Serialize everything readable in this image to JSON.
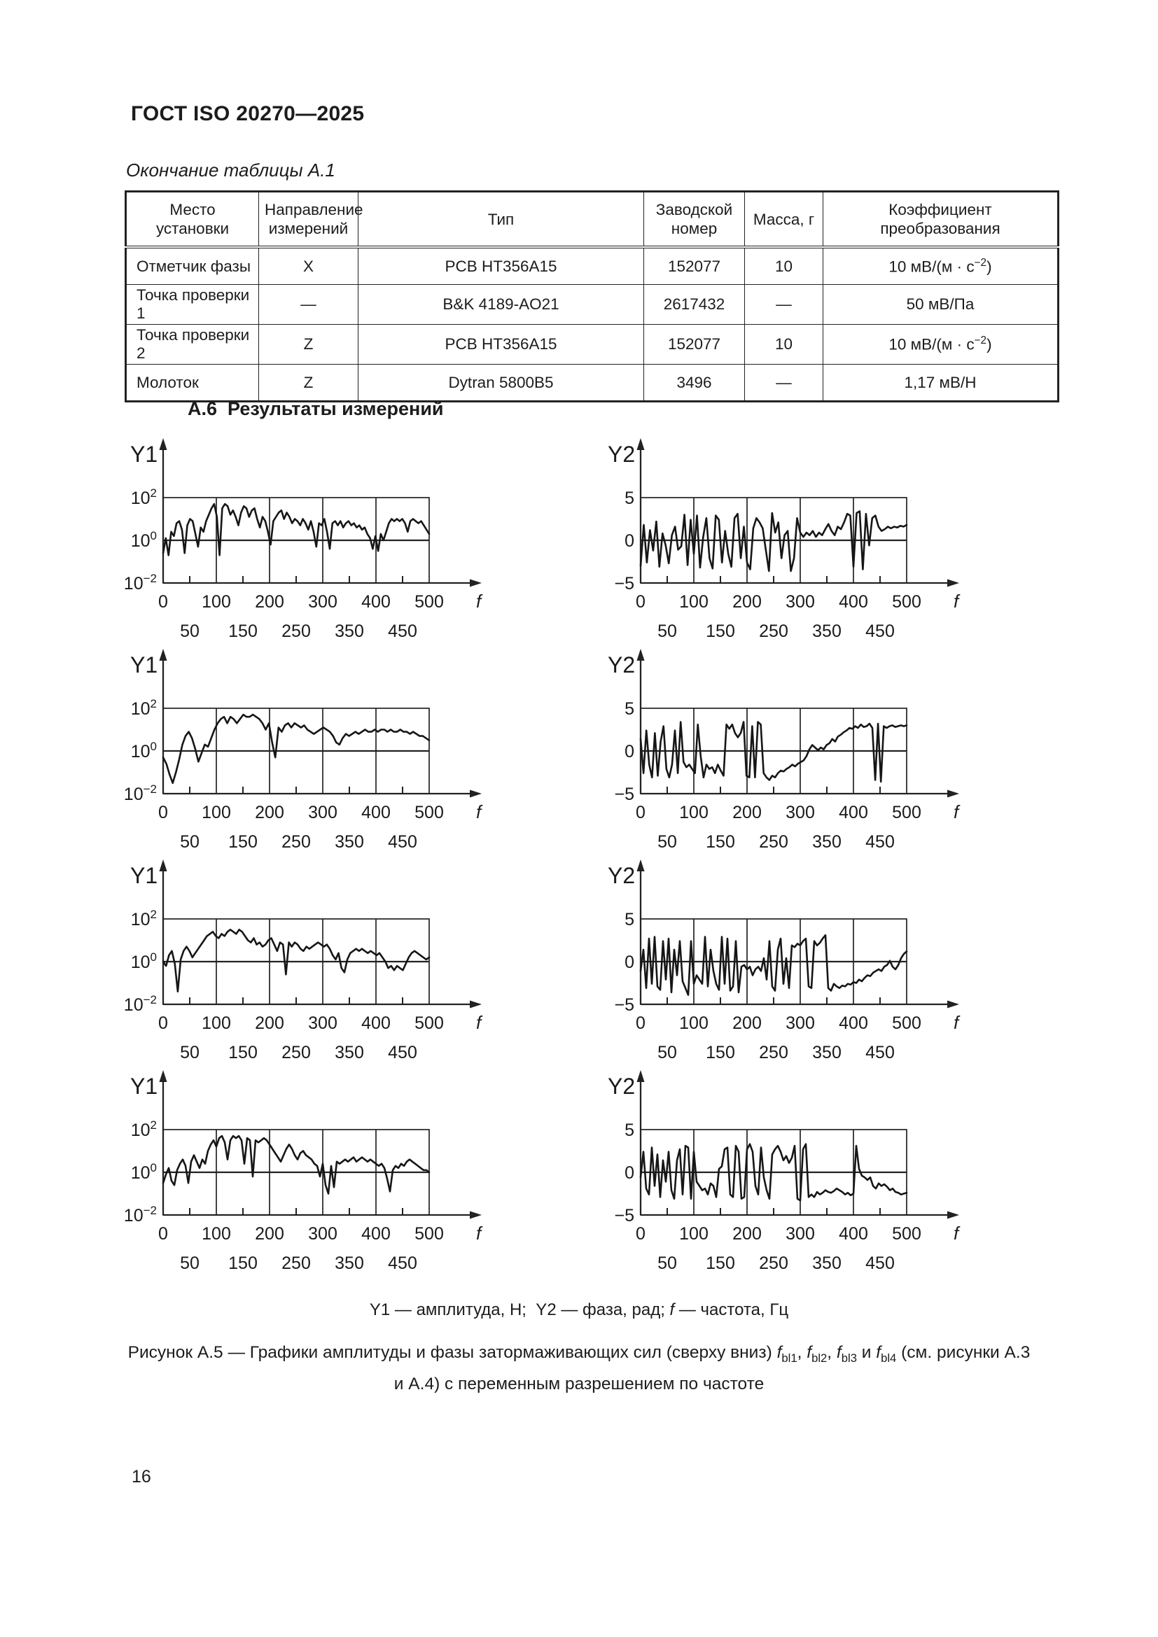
{
  "header": {
    "title": "ГОСТ ISO 20270—2025"
  },
  "page": {
    "number": "16"
  },
  "table": {
    "caption": "Окончание таблицы А.1",
    "headers": [
      "Место установки",
      "Направление измерений",
      "Тип",
      "Заводской номер",
      "Масса, г",
      "Коэффициент преобразования"
    ],
    "rows": [
      [
        "Отметчик фазы",
        "X",
        "PCB HT356A15",
        "152077",
        "10",
        "10 мВ/(м · с[sup]−2[/sup])"
      ],
      [
        "Точка проверки 1",
        "—",
        "B&K 4189-AO21",
        "2617432",
        "—",
        "50 мВ/Па"
      ],
      [
        "Точка проверки 2",
        "Z",
        "PCB HT356A15",
        "152077",
        "10",
        "10 мВ/(м · с[sup]−2[/sup])"
      ],
      [
        "Молоток",
        "Z",
        "Dytran 5800B5",
        "3496",
        "—",
        "1,17 мВ/Н"
      ]
    ]
  },
  "section": {
    "heading": "А.6  Результаты измерений"
  },
  "figure": {
    "legend": "Y1 — амплитуда, Н;  Y2 — фаза, рад; [i]f[/i] — частота, Гц",
    "caption_lines": [
      "Рисунок А.5 — Графики амплитуды и фазы затормаживающих сил (сверху вниз) [i]f[/i][sub]bl1[/sub], [i]f[/i][sub]bl2[/sub], [i]f[/i][sub]bl3[/sub] и [i]f[/i][sub]bl4[/sub] (см. рисунки А.3",
      "и А.4) с переменным разрешением по частоте"
    ]
  },
  "chart_data": [
    {
      "type": "line",
      "name": "fbl1-amplitude",
      "ylabel": "Y1",
      "xlabel": "f",
      "y_scale": "log10",
      "ymin": -2,
      "ymax": 2,
      "yticks": [
        [
          "10",
          "2"
        ],
        [
          "10",
          "0"
        ],
        [
          "10",
          "−2"
        ]
      ],
      "xmin": 0,
      "xmax": 500,
      "xticks_major": [
        0,
        100,
        200,
        300,
        400,
        500
      ],
      "xticks_minor": [
        50,
        150,
        250,
        350,
        450
      ],
      "y": [
        -0.6,
        0.1,
        -0.7,
        0.4,
        0.2,
        0.8,
        0.9,
        0.5,
        -0.6,
        0.7,
        1.0,
        0.9,
        0.3,
        -0.3,
        0.6,
        0.4,
        0.9,
        1.2,
        1.5,
        1.7,
        1.1,
        -0.7,
        1.5,
        1.7,
        1.6,
        1.2,
        1.4,
        1.1,
        0.7,
        1.3,
        1.6,
        1.5,
        1.1,
        1.4,
        1.5,
        1.0,
        0.6,
        1.1,
        0.9,
        0.4,
        -0.2,
        0.9,
        1.1,
        1.3,
        1.4,
        1.0,
        1.3,
        1.1,
        0.8,
        1.0,
        0.9,
        0.7,
        1.0,
        0.8,
        0.5,
        0.9,
        0.4,
        -0.3,
        0.8,
        0.7,
        1.0,
        0.4,
        -0.4,
        0.8,
        0.9,
        0.7,
        0.9,
        0.6,
        0.8,
        0.9,
        0.7,
        0.8,
        0.6,
        0.7,
        0.5,
        0.6,
        0.3,
        0.1,
        -0.4,
        0.2,
        -0.5,
        0.3,
        0.0,
        0.4,
        0.8,
        1.0,
        0.9,
        1.0,
        0.9,
        1.0,
        0.8,
        0.4,
        0.9,
        1.0,
        0.9,
        0.8,
        0.9,
        0.7,
        0.5,
        0.3
      ]
    },
    {
      "type": "line",
      "name": "fbl1-phase",
      "ylabel": "Y2",
      "xlabel": "f",
      "y_scale": "linear",
      "ymin": -5,
      "ymax": 5,
      "yticks": [
        [
          "5"
        ],
        [
          "0"
        ],
        [
          "−5"
        ]
      ],
      "xmin": 0,
      "xmax": 500,
      "xticks_major": [
        0,
        100,
        200,
        300,
        400,
        500
      ],
      "xticks_minor": [
        50,
        150,
        250,
        350,
        450
      ],
      "y": [
        -3,
        1.8,
        -2.6,
        1.2,
        -1.2,
        2.2,
        -3.1,
        0.8,
        -0.6,
        -2.7,
        0.6,
        1.6,
        -1.1,
        -0.7,
        3,
        -2.9,
        2.4,
        -1.6,
        2.9,
        -3.2,
        0.4,
        2.6,
        -2.1,
        -3.3,
        2.9,
        2.4,
        -2.6,
        1.1,
        -1.6,
        -3.1,
        2.6,
        3.1,
        -2.1,
        1.6,
        -2.6,
        -3.4,
        1.4,
        2.6,
        2.1,
        1.4,
        -1.1,
        -3.6,
        3.2,
        0.9,
        2.1,
        -2.1,
        0.6,
        1.1,
        -3.6,
        -2.1,
        2.6,
        0.9,
        0.4,
        0.9,
        0.6,
        1.1,
        0.4,
        0.9,
        0.6,
        1.3,
        1.9,
        1.1,
        0.6,
        1.6,
        1.3,
        2.1,
        3.1,
        2.9,
        -3.1,
        3.2,
        3.4,
        -3.4,
        3.1,
        -0.6,
        2.6,
        2.9,
        1.6,
        1.1,
        1.3,
        1.6,
        1.4,
        1.6,
        1.5,
        1.7,
        1.6,
        1.8
      ]
    },
    {
      "type": "line",
      "name": "fbl2-amplitude",
      "ylabel": "Y1",
      "xlabel": "f",
      "y_scale": "log10",
      "ymin": -2,
      "ymax": 2,
      "yticks": [
        [
          "10",
          "2"
        ],
        [
          "10",
          "0"
        ],
        [
          "10",
          "−2"
        ]
      ],
      "xmin": 0,
      "xmax": 500,
      "xticks_major": [
        0,
        100,
        200,
        300,
        400,
        500
      ],
      "xticks_minor": [
        50,
        150,
        250,
        350,
        450
      ],
      "y": [
        -0.3,
        -0.6,
        -1.1,
        -1.5,
        -1.0,
        -0.4,
        0.3,
        0.7,
        0.9,
        0.6,
        0.1,
        -0.5,
        -0.1,
        0.3,
        0.2,
        0.6,
        1.0,
        1.3,
        1.5,
        1.6,
        1.3,
        1.6,
        1.5,
        1.3,
        1.5,
        1.7,
        1.6,
        1.6,
        1.7,
        1.6,
        1.5,
        1.3,
        1.0,
        1.3,
        0.4,
        -0.3,
        1.1,
        0.9,
        1.2,
        1.3,
        1.1,
        1.3,
        1.2,
        1.1,
        1.2,
        1.0,
        0.9,
        0.8,
        0.9,
        1.0,
        1.1,
        1.0,
        0.9,
        0.7,
        0.4,
        0.3,
        0.6,
        0.8,
        0.7,
        0.8,
        0.9,
        0.8,
        0.9,
        1.0,
        0.9,
        0.9,
        1.0,
        0.9,
        1.0,
        1.0,
        0.9,
        1.0,
        0.9,
        0.9,
        1.0,
        0.9,
        0.9,
        0.8,
        0.9,
        0.8,
        0.7,
        0.7,
        0.6,
        0.5
      ]
    },
    {
      "type": "line",
      "name": "fbl2-phase",
      "ylabel": "Y2",
      "xlabel": "f",
      "y_scale": "linear",
      "ymin": -5,
      "ymax": 5,
      "yticks": [
        [
          "5"
        ],
        [
          "0"
        ],
        [
          "−5"
        ]
      ],
      "xmin": 0,
      "xmax": 500,
      "xticks_major": [
        0,
        100,
        200,
        300,
        400,
        500
      ],
      "xticks_minor": [
        50,
        150,
        250,
        350,
        450
      ],
      "y": [
        1.4,
        -2.6,
        2.4,
        -1.6,
        -3.1,
        2.1,
        -2.9,
        1.1,
        2.9,
        -2.1,
        -3.1,
        -1.6,
        2.4,
        -2.6,
        3.4,
        -1.3,
        -1.9,
        -1.6,
        -2.1,
        -2.6,
        3.1,
        -0.6,
        -3.1,
        -1.6,
        -2.1,
        -1.9,
        -2.6,
        -1.6,
        -2.3,
        -2.9,
        3.1,
        2.6,
        3.1,
        2.1,
        1.6,
        2.1,
        3.4,
        -2.9,
        -3.1,
        2.9,
        -3.1,
        3.4,
        3.1,
        -2.6,
        -3.1,
        -3.4,
        -2.9,
        -3.1,
        -2.6,
        -2.3,
        -2.4,
        -2.1,
        -1.9,
        -1.6,
        -1.8,
        -1.5,
        -1.3,
        -1.1,
        -0.6,
        0.2,
        0.7,
        0.4,
        0.1,
        0.4,
        0.2,
        0.7,
        0.9,
        1.4,
        1.1,
        1.7,
        1.9,
        2.2,
        2.4,
        2.7,
        2.6,
        2.9,
        2.7,
        3.1,
        2.8,
        2.9,
        3.2,
        2.7,
        -3.4,
        3.2,
        -3.6,
        2.9,
        2.7,
        2.9,
        3.0,
        2.8,
        2.9,
        3.0,
        2.9,
        3.0
      ]
    },
    {
      "type": "line",
      "name": "fbl3-amplitude",
      "ylabel": "Y1",
      "xlabel": "f",
      "y_scale": "log10",
      "ymin": -2,
      "ymax": 2,
      "yticks": [
        [
          "10",
          "2"
        ],
        [
          "10",
          "0"
        ],
        [
          "10",
          "−2"
        ]
      ],
      "xmin": 0,
      "xmax": 500,
      "xticks_major": [
        0,
        100,
        200,
        300,
        400,
        500
      ],
      "xticks_minor": [
        50,
        150,
        250,
        350,
        450
      ],
      "y": [
        0.0,
        -0.2,
        0.3,
        0.5,
        -0.1,
        -1.4,
        0.1,
        0.5,
        0.7,
        0.5,
        0.2,
        0.4,
        0.6,
        0.8,
        1.0,
        1.2,
        1.3,
        1.4,
        1.2,
        1.1,
        1.3,
        1.2,
        1.4,
        1.5,
        1.4,
        1.3,
        1.5,
        1.4,
        1.2,
        1.0,
        0.9,
        1.1,
        0.8,
        0.9,
        0.7,
        0.8,
        1.0,
        1.1,
        0.8,
        0.5,
        0.9,
        0.8,
        -0.6,
        0.9,
        0.7,
        0.9,
        0.8,
        0.6,
        0.5,
        0.7,
        0.6,
        0.7,
        0.8,
        0.9,
        0.8,
        0.7,
        0.8,
        0.6,
        0.3,
        0.1,
        0.4,
        -0.3,
        -0.5,
        0.1,
        0.4,
        0.5,
        0.6,
        0.5,
        0.6,
        0.5,
        0.4,
        0.5,
        0.4,
        0.3,
        0.4,
        0.2,
        0.0,
        -0.3,
        -0.2,
        -0.4,
        -0.2,
        -0.3,
        -0.4,
        -0.1,
        0.2,
        0.4,
        0.5,
        0.4,
        0.3,
        0.2,
        0.1,
        0.2
      ]
    },
    {
      "type": "line",
      "name": "fbl3-phase",
      "ylabel": "Y2",
      "xlabel": "f",
      "y_scale": "linear",
      "ymin": -5,
      "ymax": 5,
      "yticks": [
        [
          "5"
        ],
        [
          "0"
        ],
        [
          "−5"
        ]
      ],
      "xmin": 0,
      "xmax": 500,
      "xticks_major": [
        0,
        100,
        200,
        300,
        400,
        500
      ],
      "xticks_minor": [
        50,
        150,
        250,
        350,
        450
      ],
      "y": [
        -1.1,
        1.4,
        -3.1,
        2.7,
        -2.6,
        2.9,
        -2.9,
        -3.3,
        2.4,
        -2.1,
        2.7,
        -3.6,
        1.4,
        -1.6,
        2.4,
        -2.3,
        -3.1,
        -3.9,
        2.4,
        -2.6,
        -1.6,
        -2.1,
        -2.6,
        2.9,
        -2.9,
        1.4,
        -1.1,
        -2.6,
        -3.3,
        2.9,
        -2.6,
        2.7,
        -3.4,
        -2.9,
        2.4,
        -3.6,
        -0.6,
        -0.4,
        -0.9,
        -0.6,
        -1.6,
        -0.9,
        -0.6,
        -1.1,
        0.4,
        -2.1,
        2.4,
        -2.9,
        -3.4,
        1.4,
        2.7,
        -2.6,
        0.4,
        -3.1,
        1.9,
        1.7,
        2.1,
        1.9,
        2.4,
        2.7,
        -2.9,
        -3.1,
        2.4,
        1.9,
        2.2,
        2.7,
        3.1,
        -3.1,
        -3.4,
        -2.6,
        -2.9,
        -3.1,
        -2.8,
        -2.9,
        -2.6,
        -2.7,
        -2.4,
        -2.5,
        -2.1,
        -2.3,
        -1.9,
        -1.6,
        -1.7,
        -1.3,
        -1.1,
        -0.9,
        -1.1,
        -0.6,
        -0.4,
        0.1,
        -0.6,
        -0.9,
        -0.4,
        0.4,
        0.9,
        1.2
      ]
    },
    {
      "type": "line",
      "name": "fbl4-amplitude",
      "ylabel": "Y1",
      "xlabel": "f",
      "y_scale": "log10",
      "ymin": -2,
      "ymax": 2,
      "yticks": [
        [
          "10",
          "2"
        ],
        [
          "10",
          "0"
        ],
        [
          "10",
          "−2"
        ]
      ],
      "xmin": 0,
      "xmax": 500,
      "xticks_major": [
        0,
        100,
        200,
        300,
        400,
        500
      ],
      "xticks_minor": [
        50,
        150,
        250,
        350,
        450
      ],
      "y": [
        -0.5,
        -0.1,
        0.2,
        -0.4,
        -0.6,
        0.1,
        0.4,
        0.6,
        0.3,
        -0.5,
        0.5,
        0.8,
        0.5,
        0.2,
        0.6,
        0.4,
        1.0,
        1.3,
        1.5,
        1.2,
        1.6,
        1.7,
        1.4,
        0.6,
        1.5,
        1.7,
        1.6,
        1.7,
        1.5,
        0.4,
        1.6,
        1.5,
        -0.2,
        1.5,
        1.4,
        1.5,
        1.6,
        1.5,
        1.3,
        1.1,
        0.9,
        0.7,
        0.5,
        0.8,
        1.1,
        1.3,
        1.1,
        0.8,
        0.6,
        0.9,
        1.0,
        0.8,
        0.7,
        0.6,
        0.4,
        0.3,
        -0.2,
        0.4,
        -0.6,
        -1.0,
        0.3,
        -0.7,
        0.5,
        0.4,
        0.5,
        0.6,
        0.5,
        0.6,
        0.7,
        0.5,
        0.6,
        0.7,
        0.6,
        0.5,
        0.6,
        0.5,
        0.4,
        0.3,
        0.4,
        0.2,
        -0.3,
        -0.9,
        0.1,
        0.3,
        0.2,
        0.4,
        0.3,
        0.5,
        0.6,
        0.5,
        0.4,
        0.3,
        0.2,
        0.1,
        0.1,
        0.0
      ]
    },
    {
      "type": "line",
      "name": "fbl4-phase",
      "ylabel": "Y2",
      "xlabel": "f",
      "y_scale": "linear",
      "ymin": -5,
      "ymax": 5,
      "yticks": [
        [
          "5"
        ],
        [
          "0"
        ],
        [
          "−5"
        ]
      ],
      "xmin": 0,
      "xmax": 500,
      "xticks_major": [
        0,
        100,
        200,
        300,
        400,
        500
      ],
      "xticks_minor": [
        50,
        150,
        250,
        350,
        450
      ],
      "y": [
        -0.6,
        2.4,
        -1.9,
        -2.6,
        2.9,
        -1.6,
        2.1,
        -2.9,
        1.4,
        -1.1,
        2.4,
        -2.1,
        -3.1,
        1.4,
        2.7,
        -2.6,
        3.1,
        2.9,
        -3.1,
        2.4,
        -1.1,
        -1.6,
        -2.1,
        -1.9,
        -2.6,
        -1.3,
        -1.6,
        -2.9,
        0.4,
        0.7,
        2.7,
        2.9,
        -2.6,
        -2.9,
        3.1,
        2.4,
        -3.1,
        -2.9,
        2.7,
        3.3,
        2.4,
        -1.6,
        -2.6,
        2.9,
        -0.6,
        -2.1,
        -3.1,
        2.1,
        2.7,
        3.1,
        2.4,
        1.4,
        1.9,
        1.1,
        1.7,
        3.1,
        -3.1,
        -3.3,
        2.7,
        3.3,
        -2.9,
        -2.6,
        -2.9,
        -2.3,
        -2.6,
        -2.4,
        -2.1,
        -2.3,
        -2.4,
        -2.2,
        -1.9,
        -2.1,
        -2.3,
        -2.6,
        -2.4,
        -2.7,
        -2.5,
        3.1,
        0.4,
        -0.4,
        -0.6,
        -0.9,
        -0.6,
        -1.6,
        -1.9,
        -1.3,
        -1.6,
        -1.4,
        -1.7,
        -2.1,
        -1.9,
        -2.3,
        -2.4,
        -2.6,
        -2.5,
        -2.4
      ]
    }
  ]
}
